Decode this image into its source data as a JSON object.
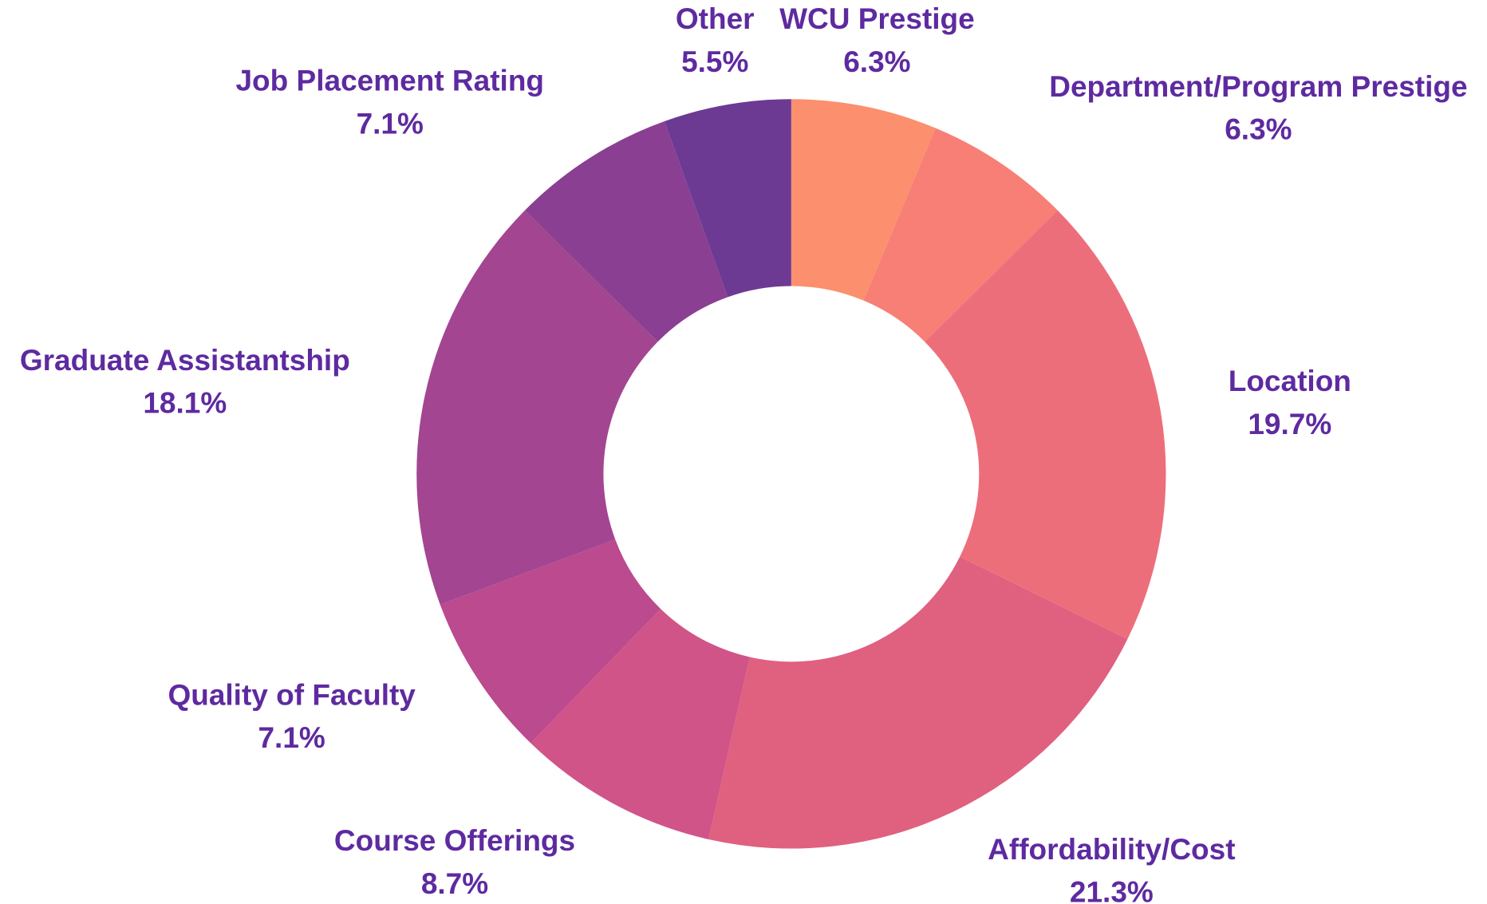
{
  "chart_data": {
    "type": "pie",
    "donut": true,
    "categories": [
      "WCU Prestige",
      "Department/Program Prestige",
      "Location",
      "Affordability/Cost",
      "Course Offerings",
      "Quality of Faculty",
      "Graduate Assistantship",
      "Job Placement Rating",
      "Other"
    ],
    "values": [
      6.3,
      6.3,
      19.7,
      21.3,
      8.7,
      7.1,
      18.1,
      7.1,
      5.5
    ],
    "value_labels": [
      "6.3%",
      "6.3%",
      "19.7%",
      "21.3%",
      "8.7%",
      "7.1%",
      "18.1%",
      "7.1%",
      "5.5%"
    ],
    "colors": [
      "#fc8f6e",
      "#f77f76",
      "#ed6e7b",
      "#e06080",
      "#d05488",
      "#bb4a8e",
      "#a34591",
      "#8a3f93",
      "#6c3a93"
    ]
  }
}
